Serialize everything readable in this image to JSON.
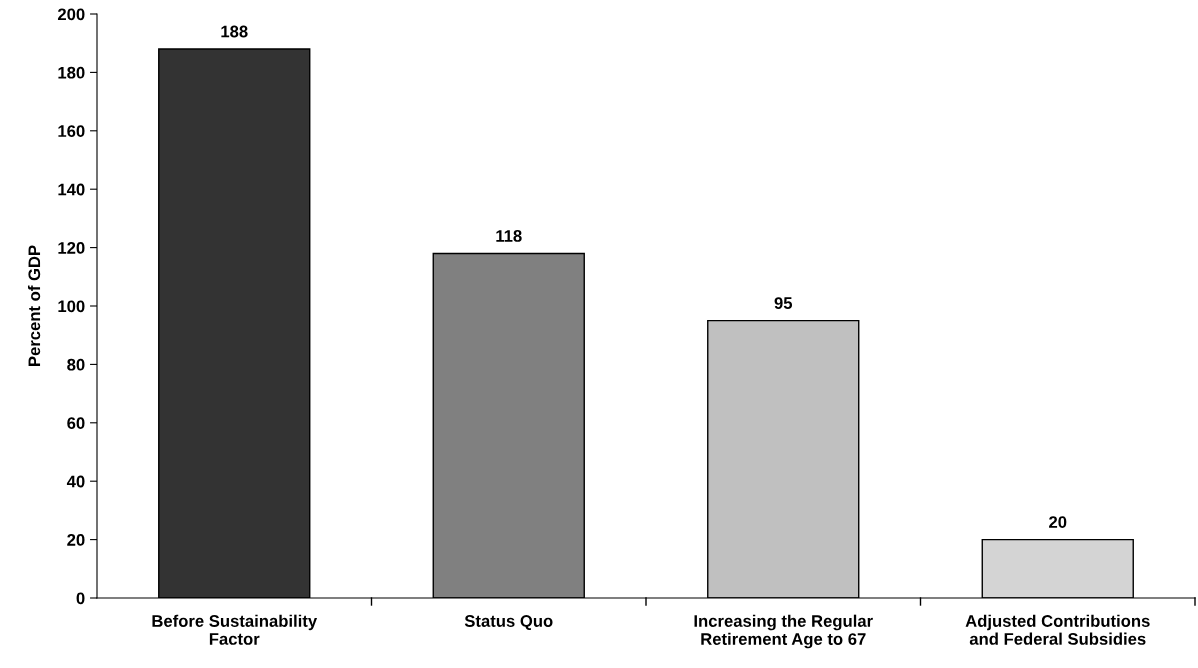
{
  "chart_data": {
    "type": "bar",
    "ylabel": "Percent of GDP",
    "categories": [
      "Before Sustainability\nFactor",
      "Status Quo",
      "Increasing the Regular\nRetirement Age to 67",
      "Adjusted Contributions\nand Federal Subsidies"
    ],
    "values": [
      188,
      118,
      95,
      20
    ],
    "colors": [
      "#333333",
      "#808080",
      "#c0c0c0",
      "#d4d4d4"
    ],
    "ylim": [
      0,
      200
    ],
    "yticks": [
      0,
      20,
      40,
      60,
      80,
      100,
      120,
      140,
      160,
      180,
      200
    ],
    "data_labels": true,
    "grid": false,
    "legend": false
  }
}
